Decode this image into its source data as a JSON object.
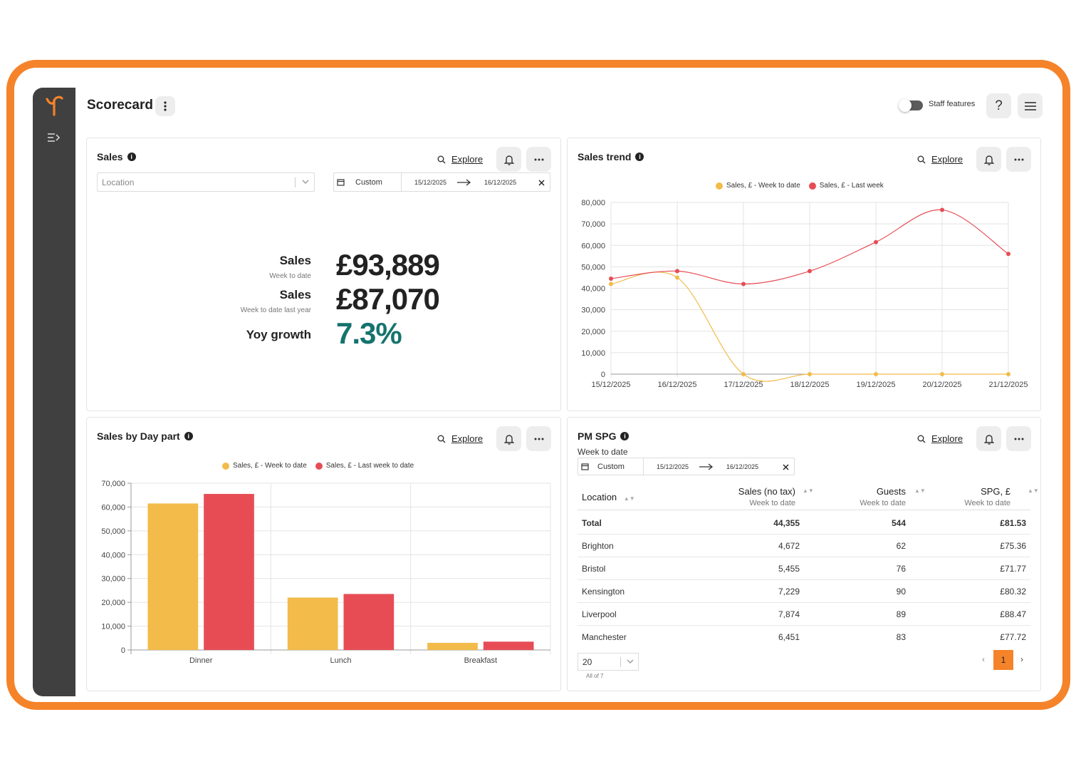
{
  "header": {
    "title": "Scorecard",
    "staff_features_label": "Staff features",
    "help_label": "?"
  },
  "colors": {
    "accent": "#f5832a",
    "sidebar": "#404040",
    "yellow": "#f2bb4a",
    "red": "#e74c55",
    "growth": "#15736d"
  },
  "sales_card": {
    "title": "Sales",
    "explore_label": "Explore",
    "location_placeholder": "Location",
    "date_mode": "Custom",
    "date_from": "15/12/2025",
    "date_to": "16/12/2025",
    "kpis": [
      {
        "label": "Sales",
        "sub": "Week to date",
        "value": "£93,889"
      },
      {
        "label": "Sales",
        "sub": "Week to date last year",
        "value": "£87,070"
      },
      {
        "label": "Yoy growth",
        "sub": "",
        "value": "7.3%"
      }
    ]
  },
  "trend_card": {
    "title": "Sales trend",
    "explore_label": "Explore"
  },
  "daypart_card": {
    "title": "Sales by Day part",
    "explore_label": "Explore"
  },
  "spg_card": {
    "title": "PM SPG",
    "subtitle": "Week to date",
    "explore_label": "Explore",
    "date_mode": "Custom",
    "date_from": "15/12/2025",
    "date_to": "16/12/2025",
    "columns": [
      {
        "label": "Location",
        "sub": ""
      },
      {
        "label": "Sales (no tax)",
        "sub": "Week to date"
      },
      {
        "label": "Guests",
        "sub": "Week to date"
      },
      {
        "label": "SPG, £",
        "sub": "Week to date"
      }
    ],
    "rows": [
      [
        "Total",
        "44,355",
        "544",
        "£81.53"
      ],
      [
        "Brighton",
        "4,672",
        "62",
        "£75.36"
      ],
      [
        "Bristol",
        "5,455",
        "76",
        "£71.77"
      ],
      [
        "Kensington",
        "7,229",
        "90",
        "£80.32"
      ],
      [
        "Liverpool",
        "7,874",
        "89",
        "£88.47"
      ],
      [
        "Manchester",
        "6,451",
        "83",
        "£77.72"
      ]
    ],
    "page_size": "20",
    "all_of": "All of 7",
    "current_page": "1",
    "prev": "‹",
    "next": "›"
  },
  "chart_data": [
    {
      "type": "line",
      "legend_position": "top",
      "x": [
        "15/12/2025",
        "16/12/2025",
        "17/12/2025",
        "18/12/2025",
        "19/12/2025",
        "20/12/2025",
        "21/12/2025"
      ],
      "series": [
        {
          "name": "Sales, £ - Week to date",
          "color": "#f2bb4a",
          "values": [
            42000,
            45000,
            0,
            0,
            0,
            0,
            0
          ]
        },
        {
          "name": "Sales, £ - Last week",
          "color": "#e74c55",
          "values": [
            44500,
            48000,
            42000,
            48000,
            61500,
            76500,
            56000
          ]
        }
      ],
      "ylim": [
        0,
        80000
      ],
      "yticks": [
        "0",
        "10,000",
        "20,000",
        "30,000",
        "40,000",
        "50,000",
        "60,000",
        "70,000",
        "80,000"
      ],
      "grid": true
    },
    {
      "type": "bar",
      "legend_position": "top",
      "categories": [
        "Dinner",
        "Lunch",
        "Breakfast"
      ],
      "series": [
        {
          "name": "Sales, £ - Week to date",
          "color": "#f2bb4a",
          "values": [
            61500,
            22000,
            3000
          ]
        },
        {
          "name": "Sales, £ - Last week to date",
          "color": "#e74c55",
          "values": [
            65500,
            23500,
            3500
          ]
        }
      ],
      "ylim": [
        0,
        70000
      ],
      "yticks": [
        "0",
        "10,000",
        "20,000",
        "30,000",
        "40,000",
        "50,000",
        "60,000",
        "70,000"
      ],
      "grid": true
    }
  ]
}
